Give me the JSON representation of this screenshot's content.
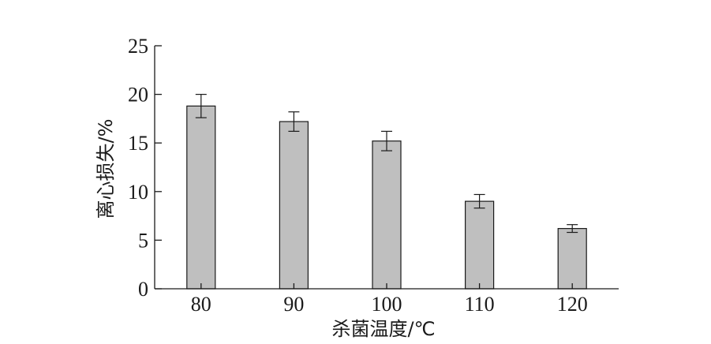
{
  "chart_data": {
    "type": "bar",
    "categories": [
      "80",
      "90",
      "100",
      "110",
      "120"
    ],
    "values": [
      18.8,
      17.2,
      15.2,
      9.0,
      6.2
    ],
    "errors": [
      1.2,
      1.0,
      1.0,
      0.7,
      0.4
    ],
    "xlabel": "杀菌温度/℃",
    "ylabel": "离心损失/%",
    "ylim": [
      0,
      25
    ],
    "yticks": [
      0,
      5,
      10,
      15,
      20,
      25
    ],
    "bar_color": "#bfbfbf",
    "grid": false,
    "legend": "none"
  }
}
